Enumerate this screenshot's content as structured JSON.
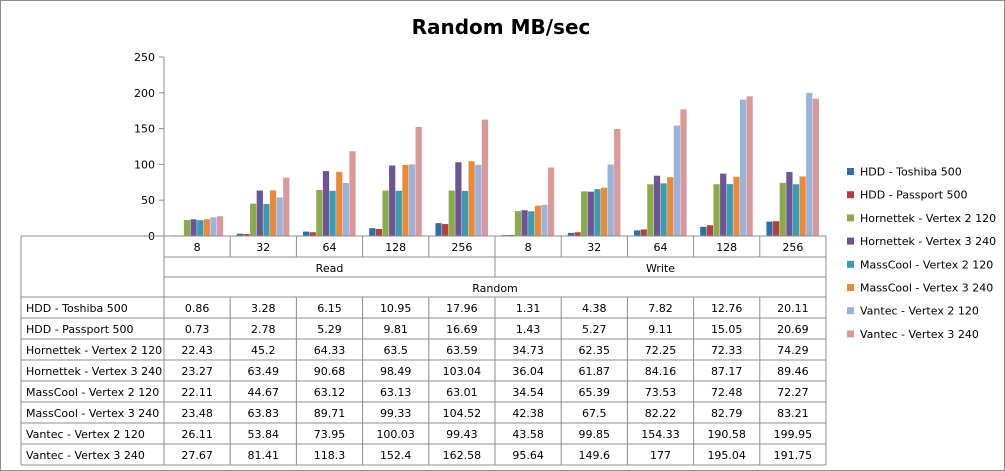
{
  "chart_data": {
    "type": "bar",
    "title": "Random MB/sec",
    "xlabel": "Random",
    "ylabel": "",
    "ylim": [
      0,
      250
    ],
    "y_ticks": [
      "0",
      "50",
      "100",
      "150",
      "200",
      "250"
    ],
    "groups": [
      {
        "label": "Read",
        "categories": [
          "8",
          "32",
          "64",
          "128",
          "256"
        ]
      },
      {
        "label": "Write",
        "categories": [
          "8",
          "32",
          "64",
          "128",
          "256"
        ]
      }
    ],
    "categories": [
      "8",
      "32",
      "64",
      "128",
      "256",
      "8",
      "32",
      "64",
      "128",
      "256"
    ],
    "grid": false,
    "legend_position": "right",
    "data_table": true,
    "series": [
      {
        "name": "HDD - Toshiba 500",
        "color": "#2e6fa7",
        "values": [
          0.86,
          3.28,
          6.15,
          10.95,
          17.96,
          1.31,
          4.38,
          7.82,
          12.76,
          20.11
        ],
        "labels": [
          "0.86",
          "3.28",
          "6.15",
          "10.95",
          "17.96",
          "1.31",
          "4.38",
          "7.82",
          "12.76",
          "20.11"
        ]
      },
      {
        "name": "HDD - Passport 500",
        "color": "#b0413e",
        "values": [
          0.73,
          2.78,
          5.29,
          9.81,
          16.69,
          1.43,
          5.27,
          9.11,
          15.05,
          20.69
        ],
        "labels": [
          "0.73",
          "2.78",
          "5.29",
          "9.81",
          "16.69",
          "1.43",
          "5.27",
          "9.11",
          "15.05",
          "20.69"
        ]
      },
      {
        "name": "Hornettek - Vertex 2 120",
        "color": "#8bab4b",
        "values": [
          22.43,
          45.2,
          64.33,
          63.5,
          63.59,
          34.73,
          62.35,
          72.25,
          72.33,
          74.29
        ],
        "labels": [
          "22.43",
          "45.2",
          "64.33",
          "63.5",
          "63.59",
          "34.73",
          "62.35",
          "72.25",
          "72.33",
          "74.29"
        ]
      },
      {
        "name": "Hornettek - Vertex 3 240",
        "color": "#6d5494",
        "values": [
          23.27,
          63.49,
          90.68,
          98.49,
          103.04,
          36.04,
          61.87,
          84.16,
          87.17,
          89.46
        ],
        "labels": [
          "23.27",
          "63.49",
          "90.68",
          "98.49",
          "103.04",
          "36.04",
          "61.87",
          "84.16",
          "87.17",
          "89.46"
        ]
      },
      {
        "name": "MassCool - Vertex 2 120",
        "color": "#3b9bb3",
        "values": [
          22.11,
          44.67,
          63.12,
          63.13,
          63.01,
          34.54,
          65.39,
          73.53,
          72.48,
          72.27
        ],
        "labels": [
          "22.11",
          "44.67",
          "63.12",
          "63.13",
          "63.01",
          "34.54",
          "65.39",
          "73.53",
          "72.48",
          "72.27"
        ]
      },
      {
        "name": "MassCool - Vertex 3 240",
        "color": "#e98a3a",
        "values": [
          23.48,
          63.83,
          89.71,
          99.33,
          104.52,
          42.38,
          67.5,
          82.22,
          82.79,
          83.21
        ],
        "labels": [
          "23.48",
          "63.83",
          "89.71",
          "99.33",
          "104.52",
          "42.38",
          "67.5",
          "82.22",
          "82.79",
          "83.21"
        ]
      },
      {
        "name": "Vantec - Vertex 2 120",
        "color": "#98b3dc",
        "values": [
          26.11,
          53.84,
          73.95,
          100.03,
          99.43,
          43.58,
          99.85,
          154.33,
          190.58,
          199.95
        ],
        "labels": [
          "26.11",
          "53.84",
          "73.95",
          "100.03",
          "99.43",
          "43.58",
          "99.85",
          "154.33",
          "190.58",
          "199.95"
        ]
      },
      {
        "name": "Vantec - Vertex 3 240",
        "color": "#d9999a",
        "values": [
          27.67,
          81.41,
          118.3,
          152.4,
          162.58,
          95.64,
          149.6,
          177,
          195.04,
          191.75
        ],
        "labels": [
          "27.67",
          "81.41",
          "118.3",
          "152.4",
          "162.58",
          "95.64",
          "149.6",
          "177",
          "195.04",
          "191.75"
        ]
      }
    ]
  }
}
